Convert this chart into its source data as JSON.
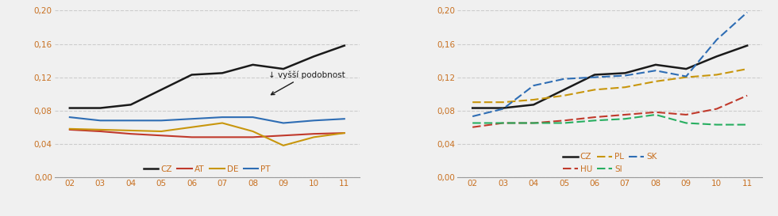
{
  "years": [
    2,
    3,
    4,
    5,
    6,
    7,
    8,
    9,
    10,
    11
  ],
  "left_chart": {
    "CZ": [
      0.083,
      0.083,
      0.087,
      0.105,
      0.123,
      0.125,
      0.135,
      0.13,
      0.145,
      0.158
    ],
    "AT": [
      0.057,
      0.055,
      0.052,
      0.05,
      0.048,
      0.048,
      0.048,
      0.05,
      0.052,
      0.053
    ],
    "DE": [
      0.058,
      0.057,
      0.056,
      0.055,
      0.06,
      0.065,
      0.055,
      0.038,
      0.048,
      0.053
    ],
    "PT": [
      0.072,
      0.068,
      0.068,
      0.068,
      0.07,
      0.072,
      0.072,
      0.065,
      0.068,
      0.07
    ]
  },
  "right_chart": {
    "CZ": [
      0.083,
      0.083,
      0.087,
      0.105,
      0.123,
      0.125,
      0.135,
      0.13,
      0.145,
      0.158
    ],
    "HU": [
      0.06,
      0.065,
      0.065,
      0.068,
      0.072,
      0.075,
      0.078,
      0.075,
      0.082,
      0.098
    ],
    "PL": [
      0.09,
      0.09,
      0.093,
      0.098,
      0.105,
      0.108,
      0.115,
      0.12,
      0.123,
      0.13
    ],
    "SI": [
      0.065,
      0.065,
      0.065,
      0.065,
      0.068,
      0.07,
      0.075,
      0.065,
      0.063,
      0.063
    ],
    "SK": [
      0.073,
      0.082,
      0.11,
      0.118,
      0.12,
      0.122,
      0.128,
      0.121,
      0.165,
      0.198
    ]
  },
  "left_colors": {
    "CZ": "#1a1a1a",
    "AT": "#c0392b",
    "DE": "#c8960c",
    "PT": "#2e6db4"
  },
  "right_colors": {
    "CZ": "#1a1a1a",
    "HU": "#c0392b",
    "PL": "#c8960c",
    "SI": "#27ae60",
    "SK": "#2e6db4"
  },
  "ylim": [
    0.0,
    0.205
  ],
  "yticks": [
    0.0,
    0.04,
    0.08,
    0.12,
    0.16,
    0.2
  ],
  "ytick_labels": [
    "0,00",
    "0,04",
    "0,08",
    "0,12",
    "0,16",
    "0,20"
  ],
  "xtick_labels": [
    "02",
    "03",
    "04",
    "05",
    "06",
    "07",
    "08",
    "09",
    "10",
    "11"
  ],
  "annotation_text": "↓ vyšší podobnost",
  "background_color": "#f0f0f0",
  "grid_color": "#cccccc",
  "tick_color": "#c87020",
  "text_color": "#1a1a1a"
}
